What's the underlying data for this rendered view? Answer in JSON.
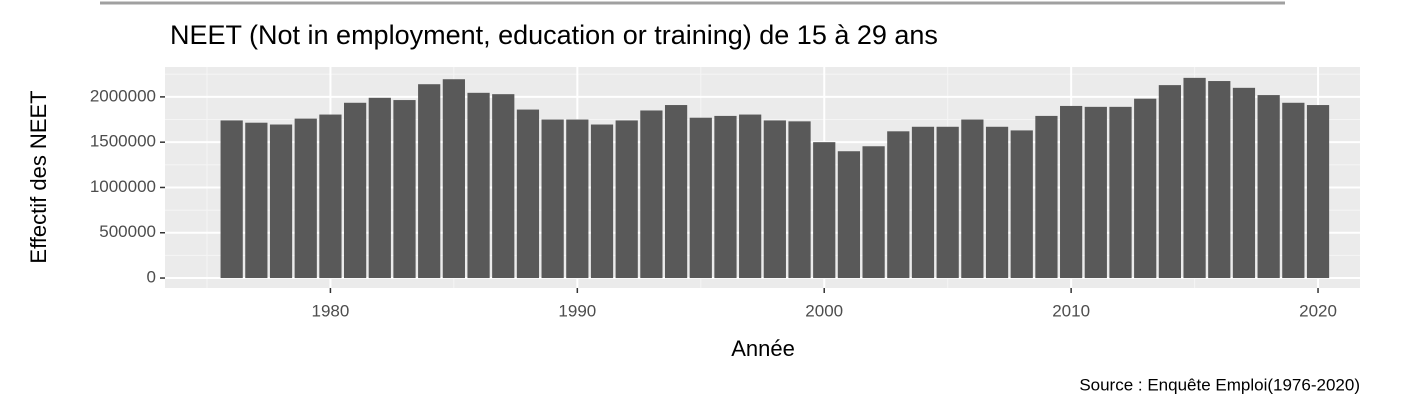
{
  "chart_data": {
    "type": "bar",
    "title": "NEET (Not in employment, education or training) de 15 à 29 ans",
    "x_label": "Année",
    "y_label": "Effectif des NEET",
    "caption": "Source : Enquête Emploi(1976-2020)",
    "x": [
      1976,
      1977,
      1978,
      1979,
      1980,
      1981,
      1982,
      1983,
      1984,
      1985,
      1986,
      1987,
      1988,
      1989,
      1990,
      1991,
      1992,
      1993,
      1994,
      1995,
      1996,
      1997,
      1998,
      1999,
      2000,
      2001,
      2002,
      2003,
      2004,
      2005,
      2006,
      2007,
      2008,
      2009,
      2010,
      2011,
      2012,
      2013,
      2014,
      2015,
      2016,
      2017,
      2018,
      2019,
      2020
    ],
    "values": [
      1740000,
      1715000,
      1695000,
      1760000,
      1805000,
      1935000,
      1990000,
      1965000,
      2140000,
      2195000,
      2045000,
      2030000,
      1860000,
      1750000,
      1750000,
      1695000,
      1740000,
      1850000,
      1910000,
      1770000,
      1790000,
      1805000,
      1740000,
      1730000,
      1500000,
      1400000,
      1455000,
      1620000,
      1670000,
      1670000,
      1750000,
      1670000,
      1630000,
      1790000,
      1900000,
      1890000,
      1890000,
      1980000,
      2130000,
      2210000,
      2175000,
      2100000,
      2020000,
      1935000,
      1910000
    ],
    "color": "#595959",
    "xlim": [
      1973.3,
      2021.7
    ],
    "xticks": [
      1980,
      1990,
      2000,
      2010,
      2020
    ],
    "ylim": [
      -110000,
      2330000
    ],
    "yticks": [
      0,
      500000,
      1000000,
      1500000,
      2000000
    ],
    "grid": true
  }
}
